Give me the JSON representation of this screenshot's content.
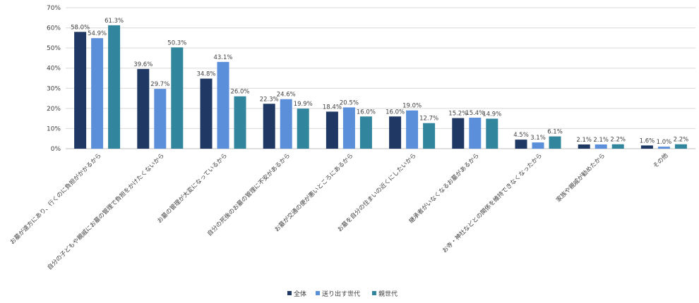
{
  "chart_data": {
    "type": "bar",
    "title": "",
    "xlabel": "",
    "ylabel": "",
    "ylim": [
      0,
      70
    ],
    "yticks": [
      "0%",
      "10%",
      "20%",
      "30%",
      "40%",
      "50%",
      "60%",
      "70%"
    ],
    "grid": true,
    "legend_position": "bottom",
    "categories": [
      "お墓が遠方にあり、行くのに負担がかかるから",
      "自分の子どもや親戚にお墓の管理で負担をかけたくないから",
      "お墓の管理が大変になっているから",
      "自分の死後のお墓の管理に不安があるから",
      "お墓が交通の便が悪いところにあるから",
      "お墓を自分の住まいの近くにしたいから",
      "継承者がいなくなるお墓があるから",
      "お寺・神社などとの関係を維持できなくなったから",
      "家族や親戚が勧めたから",
      "その他"
    ],
    "series": [
      {
        "name": "全体",
        "color": "#1f3864",
        "values": [
          58.0,
          39.6,
          34.8,
          22.3,
          18.4,
          16.0,
          15.2,
          4.5,
          2.1,
          1.6
        ],
        "labels": [
          "58.0%",
          "39.6%",
          "34.8%",
          "22.3%",
          "18.4%",
          "16.0%",
          "15.2%",
          "4.5%",
          "2.1%",
          "1.6%"
        ]
      },
      {
        "name": "送り出す世代",
        "color": "#5b8fd9",
        "values": [
          54.9,
          29.7,
          43.1,
          24.6,
          20.5,
          19.0,
          15.4,
          3.1,
          2.1,
          1.0
        ],
        "labels": [
          "54.9%",
          "29.7%",
          "43.1%",
          "24.6%",
          "20.5%",
          "19.0%",
          "15.4%",
          "3.1%",
          "2.1%",
          "1.0%"
        ]
      },
      {
        "name": "親世代",
        "color": "#31859c",
        "values": [
          61.3,
          50.3,
          26.0,
          19.9,
          16.0,
          12.7,
          14.9,
          6.1,
          2.2,
          2.2
        ],
        "labels": [
          "61.3%",
          "50.3%",
          "26.0%",
          "19.9%",
          "16.0%",
          "12.7%",
          "14.9%",
          "6.1%",
          "2.2%",
          "2.2%"
        ]
      }
    ]
  }
}
